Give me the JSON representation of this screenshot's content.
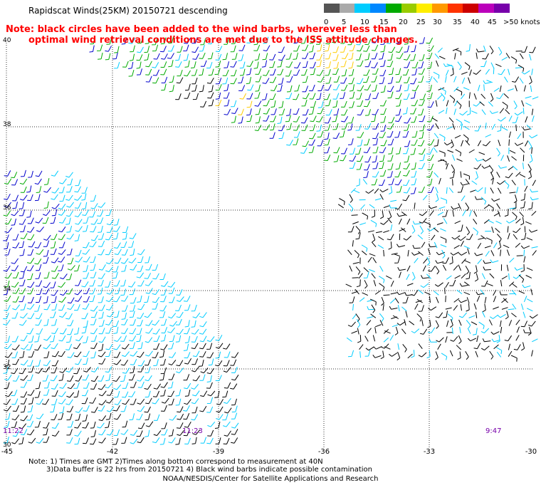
{
  "title": "Rapidscat Winds(25KM) 20150721 descending",
  "note": {
    "line1": "Note: black circles have been added to the wind barbs, wherever less than",
    "line2": "optimal wind retrieval conditions are met due to the ISS attitude changes."
  },
  "colorbar": {
    "labels": [
      "0",
      "5",
      "10",
      "15",
      "20",
      "25",
      "30",
      "35",
      "40",
      "45",
      ">50 knots"
    ],
    "colors": [
      "#555555",
      "#aaaaaa",
      "#00ccff",
      "#0088ff",
      "#00aa00",
      "#99cc00",
      "#ffee00",
      "#ff9900",
      "#ff3300",
      "#cc0000",
      "#bb00bb",
      "#7700aa"
    ]
  },
  "map": {
    "lat_labels": [
      "40",
      "38",
      "36",
      "34",
      "32",
      "30"
    ],
    "lon_labels": [
      "-45",
      "-42",
      "-39",
      "-36",
      "-33",
      "-30"
    ],
    "time_labels": [
      "11:22",
      "11:23",
      "9:47"
    ],
    "gridline_color": "#333333",
    "wind_color_black": "#000000",
    "wind_color_cyan": "#00ccff",
    "wind_color_blue": "#0000cc",
    "wind_color_green": "#00aa00",
    "wind_color_yellow": "#ffcc00"
  },
  "footer": {
    "line1": "Note: 1) Times are GMT 2)Times along bottom correspond to measurement at 40N",
    "line2": "3)Data buffer is 22 hrs from 20150721 4) Black wind barbs indicate possible contamination",
    "credit": "NOAA/NESDIS/Center for Satellite Applications and Research"
  }
}
